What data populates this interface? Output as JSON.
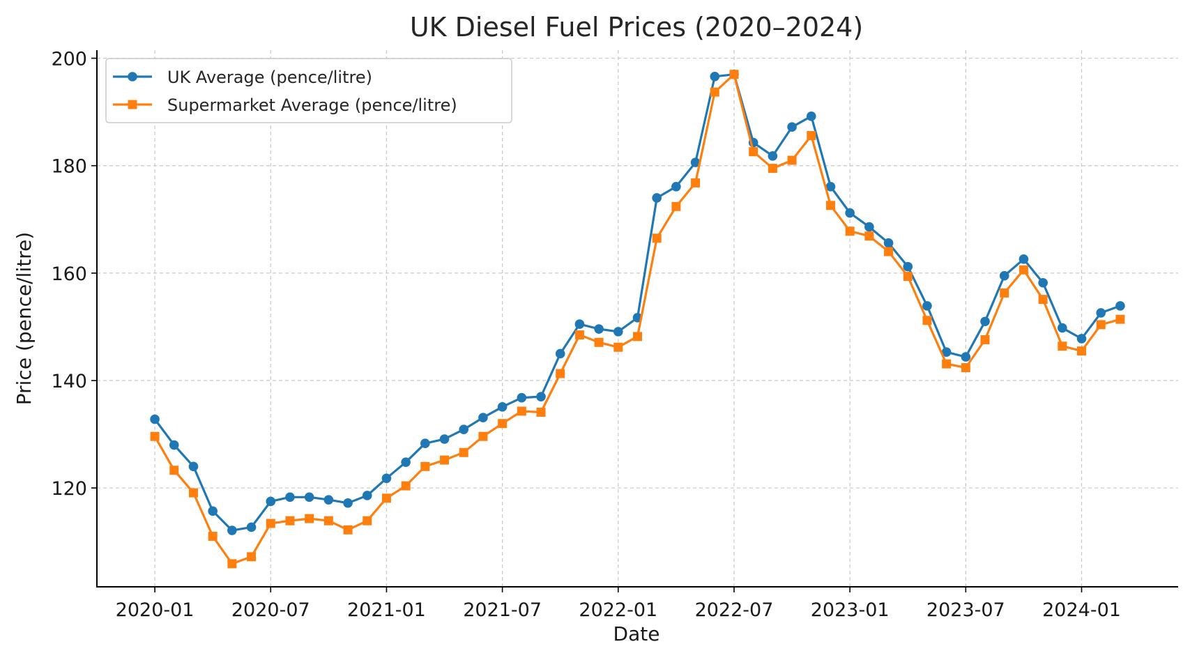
{
  "chart_data": {
    "type": "line",
    "title": "UK Diesel Fuel Prices (2020–2024)",
    "xlabel": "Date",
    "ylabel": "Price (pence/litre)",
    "x": [
      "2020-01",
      "2020-02",
      "2020-03",
      "2020-04",
      "2020-05",
      "2020-06",
      "2020-07",
      "2020-08",
      "2020-09",
      "2020-10",
      "2020-11",
      "2020-12",
      "2021-01",
      "2021-02",
      "2021-03",
      "2021-04",
      "2021-05",
      "2021-06",
      "2021-07",
      "2021-08",
      "2021-09",
      "2021-10",
      "2021-11",
      "2021-12",
      "2022-01",
      "2022-02",
      "2022-03",
      "2022-04",
      "2022-05",
      "2022-06",
      "2022-07",
      "2022-08",
      "2022-09",
      "2022-10",
      "2022-11",
      "2022-12",
      "2023-01",
      "2023-02",
      "2023-03",
      "2023-04",
      "2023-05",
      "2023-06",
      "2023-07",
      "2023-08",
      "2023-09",
      "2023-10",
      "2023-11",
      "2023-12",
      "2024-01",
      "2024-02",
      "2024-03"
    ],
    "series": [
      {
        "name": "UK Average (pence/litre)",
        "color": "#1f77b4",
        "marker": "circle",
        "values": [
          132.8,
          128.0,
          124.0,
          115.7,
          112.1,
          112.7,
          117.5,
          118.3,
          118.3,
          117.8,
          117.2,
          118.6,
          121.8,
          124.8,
          128.3,
          129.1,
          130.9,
          133.1,
          135.1,
          136.8,
          137.0,
          145.0,
          150.5,
          149.6,
          149.1,
          151.7,
          174.0,
          176.1,
          180.6,
          196.6,
          197.0,
          184.3,
          181.8,
          187.2,
          189.2,
          176.1,
          171.2,
          168.6,
          165.6,
          161.2,
          153.9,
          145.3,
          144.4,
          151.0,
          159.5,
          162.6,
          158.2,
          149.8,
          147.8,
          152.6,
          153.9
        ]
      },
      {
        "name": "Supermarket Average (pence/litre)",
        "color": "#ff7f0e",
        "marker": "square",
        "values": [
          129.6,
          123.3,
          119.1,
          111.0,
          105.9,
          107.2,
          113.4,
          113.9,
          114.3,
          113.9,
          112.2,
          113.9,
          118.1,
          120.4,
          124.0,
          125.2,
          126.6,
          129.6,
          132.0,
          134.3,
          134.1,
          141.3,
          148.5,
          147.1,
          146.2,
          148.2,
          166.5,
          172.4,
          176.8,
          193.7,
          197.0,
          182.6,
          179.5,
          181.0,
          185.6,
          172.6,
          167.8,
          166.9,
          164.0,
          159.4,
          151.2,
          143.1,
          142.4,
          147.6,
          156.3,
          160.6,
          155.1,
          146.4,
          145.5,
          150.4,
          151.4
        ]
      }
    ],
    "xticks": [
      {
        "date": "2020-01",
        "label": "2020-01"
      },
      {
        "date": "2020-07",
        "label": "2020-07"
      },
      {
        "date": "2021-01",
        "label": "2021-01"
      },
      {
        "date": "2021-07",
        "label": "2021-07"
      },
      {
        "date": "2022-01",
        "label": "2022-01"
      },
      {
        "date": "2022-07",
        "label": "2022-07"
      },
      {
        "date": "2023-01",
        "label": "2023-01"
      },
      {
        "date": "2023-07",
        "label": "2023-07"
      },
      {
        "date": "2024-01",
        "label": "2024-01"
      }
    ],
    "yticks": [
      120,
      140,
      160,
      180,
      200
    ],
    "xlim": [
      "2019-10",
      "2024-06"
    ],
    "ylim": [
      101.6,
      201.5
    ],
    "grid": true,
    "legend": "top-left"
  }
}
